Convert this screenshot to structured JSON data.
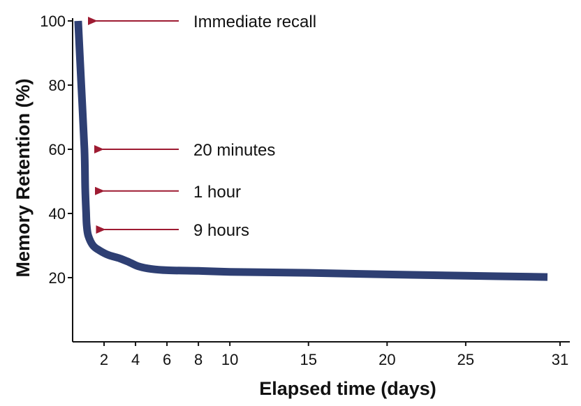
{
  "chart_data": {
    "type": "line",
    "title": "",
    "xlabel": "Elapsed time (days)",
    "ylabel": "Memory Retention (%)",
    "xlim": [
      0,
      31
    ],
    "ylim": [
      0,
      100
    ],
    "grid": false,
    "x_ticks": [
      2,
      4,
      6,
      8,
      10,
      15,
      20,
      25,
      31
    ],
    "y_ticks": [
      20,
      40,
      60,
      80,
      100
    ],
    "series": [
      {
        "color": "#2e3f73",
        "x": [
          0.35,
          0.55,
          0.75,
          0.8,
          0.86,
          0.9,
          1.0,
          1.3,
          1.7,
          2.3,
          3.0,
          3.6,
          4.2,
          5.0,
          6.0,
          8.0,
          10,
          15,
          20,
          25,
          30.2
        ],
        "y": [
          100,
          80,
          60,
          48,
          40,
          36,
          33,
          30,
          28.5,
          27,
          26,
          24.8,
          23.5,
          22.7,
          22.3,
          22.1,
          21.8,
          21.5,
          21,
          20.6,
          20.2
        ]
      }
    ],
    "annotations": [
      {
        "text": "Immediate recall",
        "x": 0.35,
        "y": 100
      },
      {
        "text": "20 minutes",
        "x": 0.75,
        "y": 60
      },
      {
        "text": "1 hour",
        "x": 0.8,
        "y": 47
      },
      {
        "text": "9 hours",
        "x": 0.86,
        "y": 35
      }
    ],
    "arrow_color": "#9e1b32",
    "axis_color": "#111111"
  }
}
